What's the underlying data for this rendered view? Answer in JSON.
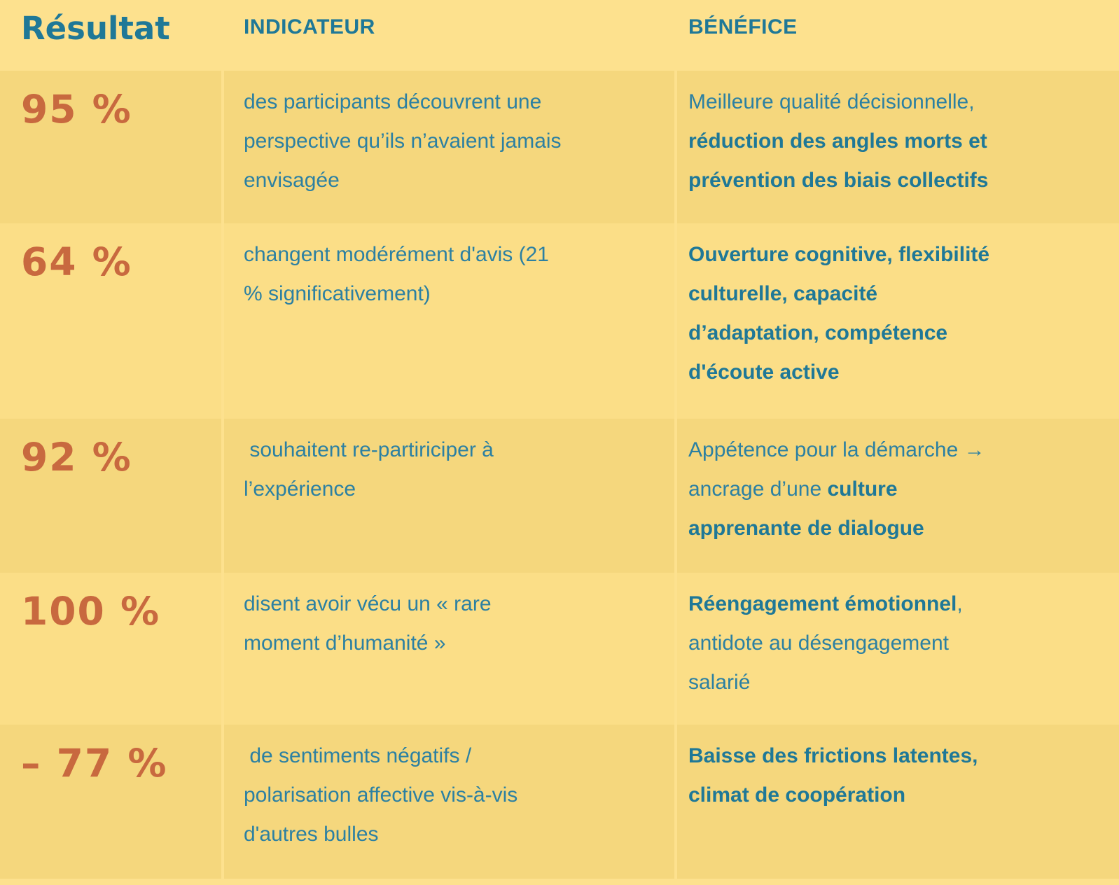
{
  "palette": {
    "bg": "#FDE18E",
    "row-dark": "#F5D77D",
    "row-light": "#FBDE87",
    "teal": "#1F7897",
    "body-blue": "#2C80A2",
    "orange": "#C8693F"
  },
  "header": {
    "result": "Résultat",
    "indicator": "INDICATEUR",
    "benefit": "BÉNÉFICE"
  },
  "rows": [
    {
      "result": "95 %",
      "indicator": "des participants découvrent une\nperspective qu’ils n’avaient jamais\nenvisagée",
      "benefit": [
        {
          "text": "Meilleure qualité décisionnelle,\n",
          "bold": false
        },
        {
          "text": "réduction des angles morts et\nprévention des biais collectifs",
          "bold": true
        }
      ]
    },
    {
      "result": "64 %",
      "indicator": "changent modérément d'avis (21\n% significativement)",
      "benefit": [
        {
          "text": "Ouverture cognitive, flexibilité\nculturelle, capacité\nd’adaptation, compétence\nd'écoute active",
          "bold": true
        }
      ]
    },
    {
      "result": "92 %",
      "indicator": " souhaitent re-partiriciper à\nl’expérience",
      "benefit": [
        {
          "text": "Appétence pour la démarche →\nancrage d’une ",
          "bold": false
        },
        {
          "text": "culture\napprenante de dialogue",
          "bold": true
        }
      ]
    },
    {
      "result": "100 %",
      "indicator": "disent avoir vécu un « rare\nmoment d’humanité »",
      "benefit": [
        {
          "text": "Réengagement émotionnel",
          "bold": true
        },
        {
          "text": ",\nantidote au désengagement\nsalarié",
          "bold": false
        }
      ]
    },
    {
      "result": "– 77 %",
      "indicator": " de sentiments négatifs /\npolarisation affective vis-à-vis\nd'autres bulles",
      "benefit": [
        {
          "text": "Baisse des frictions latentes,\nclimat de coopération",
          "bold": true
        }
      ]
    }
  ]
}
